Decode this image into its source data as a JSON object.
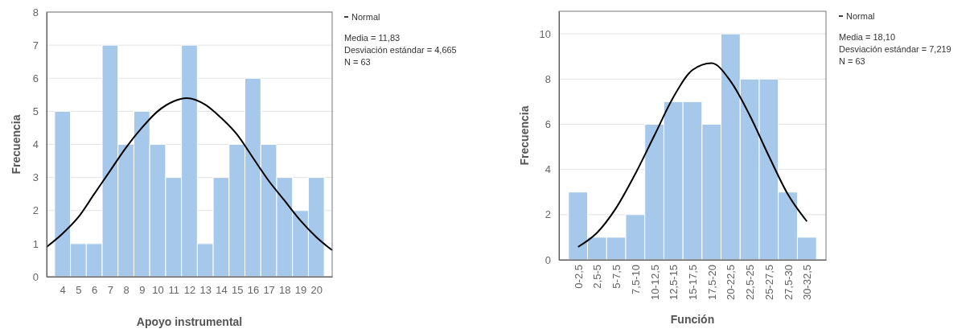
{
  "chart_data": [
    {
      "type": "histogram",
      "xlabel": "Apoyo instrumental",
      "ylabel": "Frecuencia",
      "xlim": [
        3,
        21
      ],
      "ylim": [
        0,
        8
      ],
      "xticks": [
        4,
        5,
        6,
        7,
        8,
        9,
        10,
        11,
        12,
        13,
        14,
        15,
        16,
        17,
        18,
        19,
        20
      ],
      "yticks": [
        0,
        1,
        2,
        3,
        4,
        5,
        6,
        7,
        8
      ],
      "grid": "y",
      "legend": "top right",
      "series": [
        {
          "color": "#a6c8ea",
          "bins": [
            3.5,
            4.5,
            5.5,
            6.5,
            7.5,
            8.5,
            9.5,
            10.5,
            11.5,
            12.5,
            13.5,
            14.5,
            15.5,
            16.5,
            17.5,
            18.5,
            19.5,
            20.5
          ],
          "values": [
            5,
            1,
            1,
            7,
            4,
            5,
            4,
            3,
            7,
            1,
            3,
            4,
            6,
            4,
            3,
            2,
            3
          ]
        },
        {
          "type": "line",
          "name": "Normal",
          "color": "#000000",
          "x": [
            3,
            4,
            5,
            6,
            7,
            8,
            9,
            10,
            11,
            11.83,
            13,
            14,
            15,
            16,
            17,
            18,
            19,
            20,
            21
          ],
          "values": [
            0.9,
            1.3,
            1.8,
            2.5,
            3.2,
            3.9,
            4.5,
            5.0,
            5.3,
            5.4,
            5.2,
            4.8,
            4.3,
            3.6,
            2.9,
            2.3,
            1.7,
            1.2,
            0.8
          ]
        }
      ],
      "annotations": [
        "Media = 11,83",
        "Desviación estándar = 4,665",
        "N = 63"
      ]
    },
    {
      "type": "bar",
      "xlabel": "Función",
      "ylabel": "Frecuencia",
      "ylim": [
        0,
        11
      ],
      "categories": [
        "0-2,5",
        "2,5-5",
        "5-7,5",
        "7,5-10",
        "10-12,5",
        "12,5-15",
        "15-17,5",
        "17,5-20",
        "20-22,5",
        "22,5-25",
        "25-27,5",
        "27,5-30",
        "30-32,5"
      ],
      "yticks": [
        0,
        2,
        4,
        6,
        8,
        10
      ],
      "grid": "y",
      "legend": "top right",
      "series": [
        {
          "color": "#a6c8ea",
          "values": [
            3,
            1,
            1,
            2,
            6,
            7,
            7,
            6,
            10,
            8,
            8,
            3,
            1
          ]
        },
        {
          "type": "line",
          "name": "Normal",
          "color": "#000000",
          "values": [
            0.57,
            1.2,
            2.3,
            3.8,
            5.5,
            7.2,
            8.4,
            8.7,
            7.9,
            6.4,
            4.6,
            2.9,
            1.7
          ]
        }
      ],
      "annotations": [
        "Media = 18,10",
        "Desviación estándar = 7,219",
        "N = 63"
      ]
    }
  ]
}
